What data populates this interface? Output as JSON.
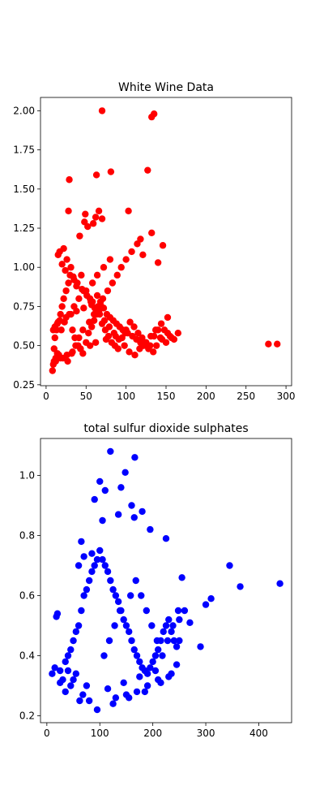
{
  "chart_data": [
    {
      "type": "scatter",
      "title": "White Wine Data",
      "xlabel": "",
      "ylabel": "",
      "xlim": [
        -7,
        307
      ],
      "ylim": [
        0.244,
        2.085
      ],
      "xticks": [
        0,
        50,
        100,
        150,
        200,
        250,
        300
      ],
      "yticks": [
        0.25,
        0.5,
        0.75,
        1.0,
        1.25,
        1.5,
        1.75,
        2.0
      ],
      "ytick_labels": [
        "0.25",
        "0.50",
        "0.75",
        "1.00",
        "1.25",
        "1.50",
        "1.75",
        "2.00"
      ],
      "grid": false,
      "series": [
        {
          "color": "#ff0000",
          "x": [
            8,
            9,
            10,
            12,
            14,
            11,
            13,
            15,
            18,
            20,
            22,
            25,
            28,
            30,
            33,
            36,
            40,
            43,
            46,
            50,
            53,
            57,
            60,
            63,
            66,
            70,
            74,
            78,
            82,
            86,
            90,
            95,
            100,
            105,
            110,
            115,
            120,
            125,
            130,
            135,
            140,
            145,
            150,
            155,
            160,
            165,
            70,
            135,
            132,
            29,
            63,
            81,
            127,
            28,
            49,
            66,
            59,
            103,
            132,
            118,
            70,
            62,
            52,
            48,
            146,
            42,
            15,
            17,
            22,
            26,
            31,
            35,
            38,
            44,
            47,
            55,
            58,
            64,
            68,
            72,
            76,
            80,
            84,
            88,
            92,
            96,
            102,
            108,
            113,
            118,
            122,
            128,
            134,
            138,
            143,
            148,
            152,
            157,
            20,
            24,
            34,
            39,
            45,
            51,
            56,
            61,
            67,
            73,
            79,
            85,
            91,
            98,
            104,
            111,
            117,
            124,
            131,
            137,
            144,
            10,
            16,
            21,
            27,
            32,
            37,
            41,
            46,
            54,
            60,
            65,
            71,
            77,
            83,
            89,
            94,
            100,
            107,
            114,
            121,
            140,
            152,
            278,
            289,
            19,
            23,
            29,
            35,
            41,
            50,
            58,
            64,
            72,
            80,
            12,
            18,
            26,
            33,
            43,
            55,
            62,
            75,
            87,
            99,
            9,
            11,
            14,
            17,
            25,
            31,
            38,
            47,
            57,
            68
          ],
          "y": [
            0.34,
            0.38,
            0.4,
            0.42,
            0.45,
            0.55,
            0.6,
            0.65,
            0.7,
            0.75,
            0.8,
            0.85,
            0.9,
            0.95,
            0.6,
            0.55,
            0.5,
            0.48,
            0.45,
            0.52,
            0.58,
            0.62,
            0.66,
            0.7,
            0.72,
            0.64,
            0.6,
            0.56,
            0.52,
            0.5,
            0.48,
            0.55,
            0.6,
            0.65,
            0.62,
            0.58,
            0.55,
            0.52,
            0.5,
            0.56,
            0.6,
            0.54,
            0.52,
            0.56,
            0.54,
            0.58,
            2.0,
            1.98,
            1.96,
            1.56,
            1.59,
            1.61,
            1.62,
            1.36,
            1.34,
            1.36,
            1.28,
            1.36,
            1.22,
            1.18,
            1.31,
            1.32,
            1.26,
            1.29,
            1.14,
            1.2,
            1.08,
            1.1,
            1.12,
            1.05,
            1.0,
            0.92,
            0.88,
            0.95,
            0.85,
            0.8,
            0.78,
            0.82,
            0.76,
            0.74,
            0.7,
            0.68,
            0.66,
            0.64,
            0.62,
            0.6,
            0.58,
            0.56,
            0.54,
            0.52,
            0.5,
            0.48,
            0.46,
            0.5,
            0.55,
            0.6,
            0.58,
            0.55,
            1.02,
            0.98,
            0.94,
            0.9,
            0.86,
            0.82,
            0.78,
            0.74,
            0.7,
            0.66,
            0.62,
            0.58,
            0.54,
            0.5,
            0.46,
            0.44,
            0.48,
            0.52,
            0.56,
            0.6,
            0.64,
            0.48,
            0.44,
            0.42,
            0.4,
            0.45,
            0.5,
            0.55,
            0.6,
            0.65,
            0.7,
            0.75,
            0.8,
            0.85,
            0.9,
            0.95,
            1.0,
            1.05,
            1.1,
            1.15,
            1.08,
            1.03,
            0.68,
            0.51,
            0.51,
            0.6,
            0.65,
            0.7,
            0.75,
            0.8,
            0.85,
            0.9,
            0.95,
            1.0,
            1.05,
            0.4,
            0.42,
            0.44,
            0.46,
            0.48,
            0.5,
            0.52,
            0.54,
            0.56,
            0.58,
            0.6,
            0.62,
            0.64,
            0.66,
            0.68,
            0.7,
            0.72,
            0.74,
            0.76,
            0.78
          ]
        }
      ]
    },
    {
      "type": "scatter",
      "title": "total sulfur dioxide sulphates",
      "xlabel": "",
      "ylabel": "",
      "xlim": [
        -12,
        462
      ],
      "ylim": [
        0.177,
        1.123
      ],
      "xticks": [
        0,
        100,
        200,
        300,
        400
      ],
      "yticks": [
        0.2,
        0.4,
        0.6,
        0.8,
        1.0
      ],
      "ytick_labels": [
        "0.2",
        "0.4",
        "0.6",
        "0.8",
        "1.0"
      ],
      "grid": false,
      "series": [
        {
          "color": "#0000ff",
          "x": [
            10,
            15,
            20,
            25,
            30,
            35,
            40,
            45,
            50,
            55,
            60,
            65,
            70,
            75,
            80,
            85,
            90,
            95,
            100,
            105,
            110,
            115,
            120,
            125,
            130,
            135,
            140,
            145,
            150,
            155,
            160,
            165,
            170,
            175,
            180,
            185,
            190,
            195,
            200,
            205,
            210,
            215,
            220,
            225,
            230,
            235,
            240,
            245,
            250,
            260,
            270,
            290,
            300,
            310,
            345,
            365,
            440,
            120,
            148,
            166,
            100,
            110,
            140,
            160,
            180,
            90,
            70,
            60,
            130,
            150,
            170,
            190,
            210,
            230,
            250,
            80,
            95,
            125,
            155,
            185,
            215,
            245,
            105,
            135,
            165,
            195,
            225,
            55,
            75,
            115,
            145,
            175,
            205,
            235,
            65,
            85,
            255,
            62,
            68,
            45,
            50,
            40,
            35,
            25,
            18,
            108,
            118,
            128,
            138,
            158,
            168,
            178,
            188,
            198,
            208,
            218,
            228,
            238,
            248
          ],
          "y": [
            0.34,
            0.36,
            0.54,
            0.35,
            0.32,
            0.38,
            0.4,
            0.42,
            0.45,
            0.48,
            0.5,
            0.55,
            0.6,
            0.62,
            0.65,
            0.68,
            0.7,
            0.72,
            0.75,
            0.72,
            0.7,
            0.68,
            0.65,
            0.62,
            0.6,
            0.58,
            0.55,
            0.52,
            0.5,
            0.48,
            0.45,
            0.42,
            0.4,
            0.38,
            0.36,
            0.35,
            0.34,
            0.36,
            0.38,
            0.4,
            0.42,
            0.45,
            0.48,
            0.5,
            0.52,
            0.48,
            0.45,
            0.43,
            0.52,
            0.55,
            0.51,
            0.43,
            0.57,
            0.59,
            0.7,
            0.63,
            0.64,
            1.08,
            1.01,
            1.06,
            0.98,
            0.95,
            0.96,
            0.9,
            0.88,
            0.92,
            0.73,
            0.7,
            0.26,
            0.27,
            0.28,
            0.3,
            0.32,
            0.33,
            0.45,
            0.25,
            0.22,
            0.24,
            0.26,
            0.28,
            0.31,
            0.37,
            0.85,
            0.87,
            0.86,
            0.82,
            0.79,
            0.34,
            0.3,
            0.29,
            0.31,
            0.33,
            0.35,
            0.34,
            0.78,
            0.74,
            0.66,
            0.25,
            0.27,
            0.3,
            0.32,
            0.35,
            0.28,
            0.31,
            0.53,
            0.4,
            0.45,
            0.5,
            0.55,
            0.6,
            0.65,
            0.6,
            0.55,
            0.5,
            0.45,
            0.4,
            0.45,
            0.5,
            0.55
          ]
        }
      ]
    }
  ]
}
